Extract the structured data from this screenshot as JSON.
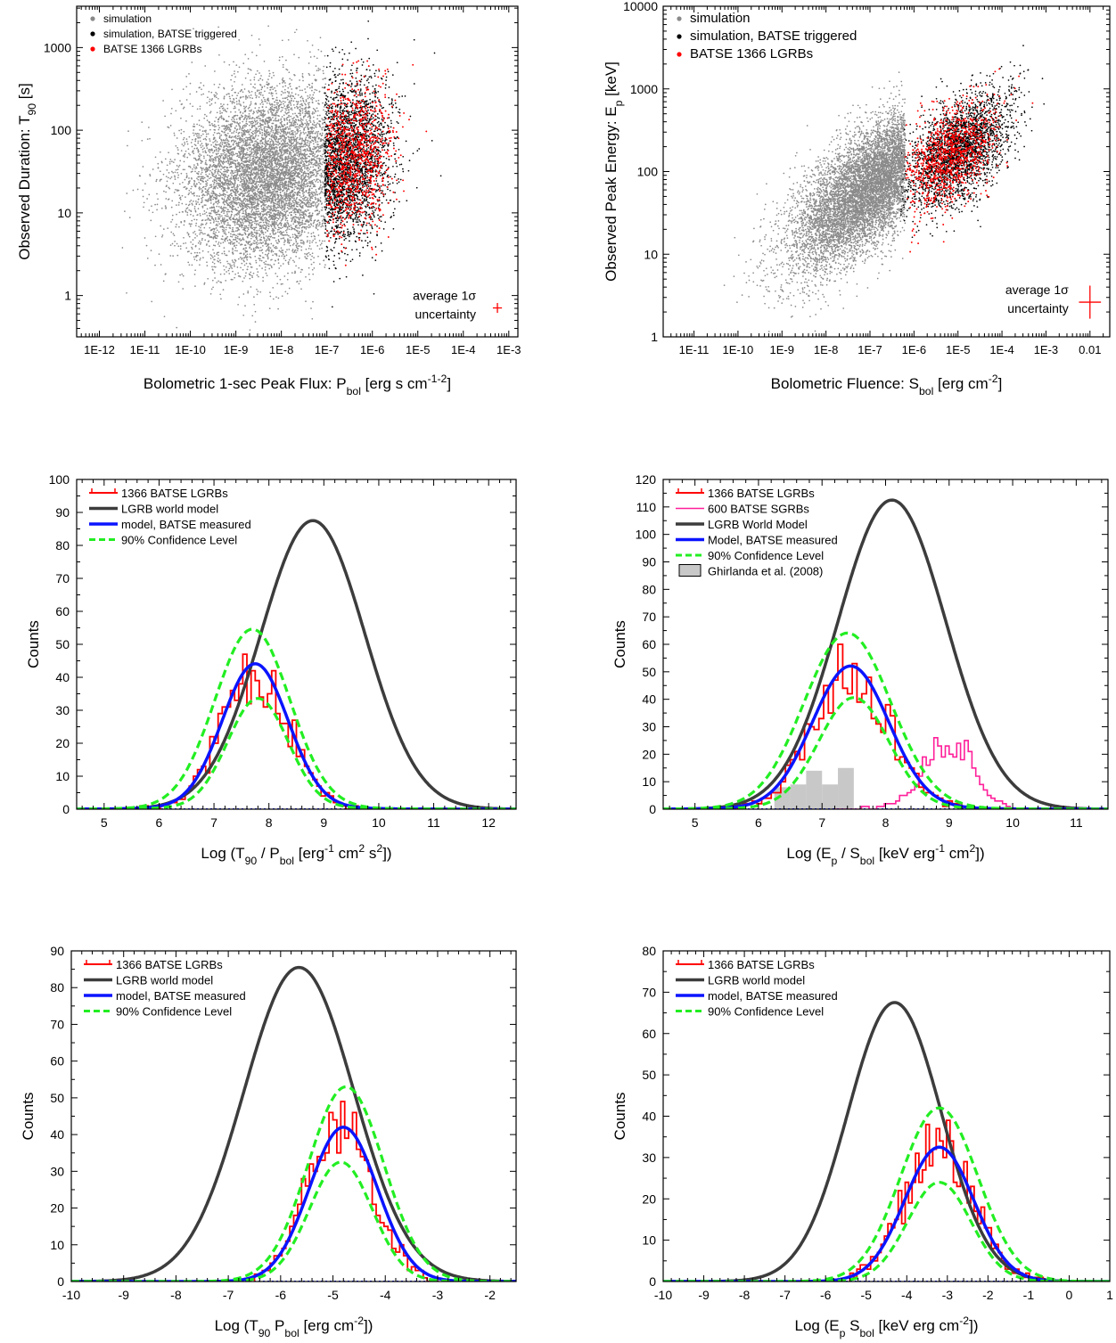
{
  "colors": {
    "simulation": "#8a8a8a",
    "batse_triggered": "#000000",
    "batse_lgrb": "#ff0000",
    "sgrb": "#ff1f9a",
    "world_model": "#3c3c3c",
    "measured_model": "#0b14ff",
    "confidence": "#22ee22",
    "ghirlanda": "#c8c8c8"
  },
  "chart_data": [
    {
      "id": "p1",
      "type": "scatter",
      "log_x": true,
      "log_y": true,
      "xlim_log10": [
        -12.5,
        -2.8
      ],
      "ylim_log10": [
        -0.5,
        3.5
      ],
      "x_ticks": [
        {
          "v": -12,
          "label": "1E-12"
        },
        {
          "v": -11,
          "label": "1E-11"
        },
        {
          "v": -10,
          "label": "1E-10"
        },
        {
          "v": -9,
          "label": "1E-9"
        },
        {
          "v": -8,
          "label": "1E-8"
        },
        {
          "v": -7,
          "label": "1E-7"
        },
        {
          "v": -6,
          "label": "1E-6"
        },
        {
          "v": -5,
          "label": "1E-5"
        },
        {
          "v": -4,
          "label": "1E-4"
        },
        {
          "v": -3,
          "label": "1E-3"
        }
      ],
      "y_ticks": [
        {
          "v": 0,
          "label": "1"
        },
        {
          "v": 1,
          "label": "10"
        },
        {
          "v": 2,
          "label": "100"
        },
        {
          "v": 3,
          "label": "1000"
        }
      ],
      "xlabel": {
        "pre": "Bolometric 1-sec Peak Flux: P",
        "sub": "bol",
        "mid1": " [erg s",
        "sup1": "-1",
        "mid2": " cm",
        "sup2": "-2",
        "post": "]"
      },
      "ylabel": {
        "pre": "Observed Duration: T",
        "sub": "90",
        "post": " [s]"
      },
      "legend": [
        "simulation",
        "simulation, BATSE triggered",
        "BATSE 1366 LGRBs"
      ],
      "annotation": [
        "average 1σ",
        "uncertainty"
      ],
      "clouds": {
        "simulation": {
          "mean_x": -8.3,
          "sd_x": 0.95,
          "mean_y": 1.45,
          "sd_y": 0.55,
          "rho": 0.15,
          "x_max": -7.0
        },
        "triggered": {
          "mean_x": -6.7,
          "sd_x": 0.55,
          "mean_y": 1.6,
          "sd_y": 0.5,
          "rho": 0.2,
          "x_min": -7.05
        },
        "lgrb": {
          "mean_x": -6.45,
          "sd_x": 0.45,
          "mean_y": 1.65,
          "sd_y": 0.45,
          "rho": 0.2,
          "x_min": -7.0
        }
      },
      "error_bar": {
        "x": -3.25,
        "y": -0.15,
        "dx": 0.1,
        "dy": 0.06
      }
    },
    {
      "id": "p2",
      "type": "scatter",
      "log_x": true,
      "log_y": true,
      "xlim_log10": [
        -11.7,
        -1.55
      ],
      "ylim_log10": [
        0,
        4
      ],
      "x_ticks": [
        {
          "v": -11,
          "label": "1E-11"
        },
        {
          "v": -10,
          "label": "1E-10"
        },
        {
          "v": -9,
          "label": "1E-9"
        },
        {
          "v": -8,
          "label": "1E-8"
        },
        {
          "v": -7,
          "label": "1E-7"
        },
        {
          "v": -6,
          "label": "1E-6"
        },
        {
          "v": -5,
          "label": "1E-5"
        },
        {
          "v": -4,
          "label": "1E-4"
        },
        {
          "v": -3,
          "label": "1E-3"
        },
        {
          "v": -2,
          "label": "0.01"
        }
      ],
      "y_ticks": [
        {
          "v": 0,
          "label": "1"
        },
        {
          "v": 1,
          "label": "10"
        },
        {
          "v": 2,
          "label": "100"
        },
        {
          "v": 3,
          "label": "1000"
        },
        {
          "v": 4,
          "label": "10000"
        }
      ],
      "xlabel": {
        "pre": "Bolometric Fluence: S",
        "sub": "bol",
        "mid1": " [erg cm",
        "sup1": "-2",
        "post": "]"
      },
      "ylabel": {
        "pre": "Observed Peak Energy: E",
        "sub": "p",
        "post": " [keV]"
      },
      "legend": [
        "simulation",
        "simulation, BATSE triggered",
        "BATSE 1366 LGRBs"
      ],
      "annotation": [
        "average 1σ",
        "uncertainty"
      ],
      "clouds": {
        "simulation": {
          "mean_x": -6.9,
          "sd_x": 0.95,
          "mean_y": 1.85,
          "sd_y": 0.5,
          "rho": 0.7,
          "x_max": -6.2
        },
        "triggered": {
          "mean_x": -5.0,
          "sd_x": 0.6,
          "mean_y": 2.25,
          "sd_y": 0.35,
          "rho": 0.55,
          "x_min": -6.3
        },
        "lgrb": {
          "mean_x": -5.2,
          "sd_x": 0.55,
          "mean_y": 2.2,
          "sd_y": 0.33,
          "rho": 0.5,
          "x_min": -6.2
        }
      },
      "error_bar": {
        "x": -2.0,
        "y": 0.42,
        "dx": 0.25,
        "dy": 0.2
      }
    },
    {
      "id": "p3",
      "type": "line",
      "xlim": [
        4.5,
        12.5
      ],
      "ylim": [
        0,
        100
      ],
      "x_ticks": [
        5,
        6,
        7,
        8,
        9,
        10,
        11,
        12
      ],
      "y_ticks": [
        0,
        10,
        20,
        30,
        40,
        50,
        60,
        70,
        80,
        90,
        100
      ],
      "xlabel": {
        "pre": "Log (T",
        "sub": "90",
        "mid1": " / P",
        "sub2": "bol",
        "mid2": " [erg",
        "sup1": "-1",
        "mid3": " cm",
        "sup2": "2",
        "mid4": " s",
        "sup3": "2",
        "post": "])"
      },
      "ylabel": "Counts",
      "legend": [
        {
          "label": "1366 BATSE LGRBs",
          "kind": "hist"
        },
        {
          "label": "LGRB world model",
          "kind": "world"
        },
        {
          "label": "model, BATSE measured",
          "kind": "model"
        },
        {
          "label": "90% Confidence Level",
          "kind": "conf"
        }
      ],
      "series": [
        {
          "kind": "world",
          "mu": 8.8,
          "sigma": 0.95,
          "amp": 87.5
        },
        {
          "kind": "model",
          "mu": 7.75,
          "sigma": 0.6,
          "amp": 43.5,
          "base": 0.6,
          "base_sigma": 1.4
        },
        {
          "kind": "conf",
          "mu": 7.7,
          "sigma": 0.68,
          "amp": 54,
          "base": 0.6,
          "base_sigma": 1.4
        },
        {
          "kind": "conf",
          "mu": 7.8,
          "sigma": 0.55,
          "amp": 33,
          "base": 0.6,
          "base_sigma": 1.4
        }
      ],
      "histograms": [
        {
          "kind": "hist",
          "start": 5.5,
          "bin": 0.075,
          "mu": 7.75,
          "sigma": 0.6,
          "amp": 44,
          "noise": 0.28,
          "threshold": 0.4,
          "seed": 11
        }
      ]
    },
    {
      "id": "p4",
      "type": "line",
      "xlim": [
        4.5,
        11.5
      ],
      "ylim": [
        0,
        120
      ],
      "x_ticks": [
        5,
        6,
        7,
        8,
        9,
        10,
        11
      ],
      "y_ticks": [
        0,
        10,
        20,
        30,
        40,
        50,
        60,
        70,
        80,
        90,
        100,
        110,
        120
      ],
      "xlabel": {
        "pre": "Log (E",
        "sub": "p",
        "mid1": " / S",
        "sub2": "bol",
        "mid2": "  [keV erg",
        "sup1": "-1",
        "mid3": " cm",
        "sup2": "2",
        "post": "])"
      },
      "ylabel": "Counts",
      "legend": [
        {
          "label": "1366 BATSE LGRBs",
          "kind": "hist"
        },
        {
          "label": "600 BATSE SGRBs",
          "kind": "sgrb"
        },
        {
          "label": "LGRB World Model",
          "kind": "world"
        },
        {
          "label": "Model, BATSE measured",
          "kind": "model"
        },
        {
          "label": "90% Confidence Level",
          "kind": "conf"
        },
        {
          "label": "Ghirlanda et al. (2008)",
          "kind": "ghirl"
        }
      ],
      "series": [
        {
          "kind": "world",
          "mu": 8.1,
          "sigma": 0.85,
          "amp": 112.5
        },
        {
          "kind": "model",
          "mu": 7.45,
          "sigma": 0.6,
          "amp": 51.5,
          "base": 0.6,
          "base_sigma": 1.4
        },
        {
          "kind": "conf",
          "mu": 7.4,
          "sigma": 0.68,
          "amp": 63.5,
          "base": 0.6,
          "base_sigma": 1.4
        },
        {
          "kind": "conf",
          "mu": 7.5,
          "sigma": 0.55,
          "amp": 40,
          "base": 0.6,
          "base_sigma": 1.4
        }
      ],
      "histograms": [
        {
          "kind": "hist",
          "start": 5.6,
          "bin": 0.075,
          "mu": 7.45,
          "sigma": 0.6,
          "amp": 51,
          "noise": 0.25,
          "threshold": 0.4,
          "seed": 23
        },
        {
          "kind": "sgrb",
          "start": 7.2,
          "bin": 0.06,
          "mu": 9.0,
          "sigma": 0.38,
          "amp": 26,
          "noise": 0.3,
          "threshold": 0.5,
          "seed": 37
        }
      ],
      "ghirlanda": {
        "edges": [
          6.25,
          6.5,
          6.75,
          7.0,
          7.25,
          7.5
        ],
        "values": [
          8,
          9,
          14,
          9,
          15
        ]
      }
    },
    {
      "id": "p5",
      "type": "line",
      "xlim": [
        -10,
        -1.5
      ],
      "ylim": [
        0,
        90
      ],
      "x_ticks": [
        -10,
        -9,
        -8,
        -7,
        -6,
        -5,
        -4,
        -3,
        -2
      ],
      "y_ticks": [
        0,
        10,
        20,
        30,
        40,
        50,
        60,
        70,
        80,
        90
      ],
      "xlabel": {
        "pre": "Log (T",
        "sub": "90",
        "mid1": " P",
        "sub2": "bol",
        "mid2": "  [erg cm",
        "sup1": "-2",
        "post": "])"
      },
      "ylabel": "Counts",
      "legend": [
        {
          "label": "1366 BATSE LGRBs",
          "kind": "hist"
        },
        {
          "label": "LGRB world model",
          "kind": "world"
        },
        {
          "label": "model, BATSE measured",
          "kind": "model"
        },
        {
          "label": "90% Confidence Level",
          "kind": "conf"
        }
      ],
      "series": [
        {
          "kind": "world",
          "mu": -5.65,
          "sigma": 1.05,
          "amp": 85.5
        },
        {
          "kind": "model",
          "mu": -4.8,
          "sigma": 0.65,
          "amp": 42
        },
        {
          "kind": "conf",
          "mu": -4.75,
          "sigma": 0.72,
          "amp": 53
        },
        {
          "kind": "conf",
          "mu": -4.85,
          "sigma": 0.6,
          "amp": 32.5
        }
      ],
      "histograms": [
        {
          "kind": "hist",
          "start": -6.5,
          "bin": 0.075,
          "mu": -4.85,
          "sigma": 0.62,
          "amp": 43,
          "noise": 0.22,
          "threshold": 0.4,
          "seed": 51
        }
      ]
    },
    {
      "id": "p6",
      "type": "line",
      "xlim": [
        -10,
        1
      ],
      "ylim": [
        0,
        80
      ],
      "x_ticks": [
        -10,
        -9,
        -8,
        -7,
        -6,
        -5,
        -4,
        -3,
        -2,
        -1,
        0,
        1
      ],
      "y_ticks": [
        0,
        10,
        20,
        30,
        40,
        50,
        60,
        70,
        80
      ],
      "xlabel": {
        "pre": "Log (E",
        "sub": "p",
        "mid1": " S",
        "sub2": "bol",
        "mid2": "  [keV erg cm",
        "sup1": "-2",
        "post": "])"
      },
      "ylabel": "Counts",
      "legend": [
        {
          "label": "1366 BATSE LGRBs",
          "kind": "hist"
        },
        {
          "label": "LGRB world model",
          "kind": "world"
        },
        {
          "label": "model, BATSE measured",
          "kind": "model"
        },
        {
          "label": "90% Confidence Level",
          "kind": "conf"
        }
      ],
      "series": [
        {
          "kind": "world",
          "mu": -4.3,
          "sigma": 1.15,
          "amp": 67.5
        },
        {
          "kind": "model",
          "mu": -3.2,
          "sigma": 0.85,
          "amp": 32.5
        },
        {
          "kind": "conf",
          "mu": -3.2,
          "sigma": 0.95,
          "amp": 42
        },
        {
          "kind": "conf",
          "mu": -3.2,
          "sigma": 0.78,
          "amp": 24
        }
      ],
      "histograms": [
        {
          "kind": "hist",
          "start": -5.4,
          "bin": 0.085,
          "mu": -3.2,
          "sigma": 0.85,
          "amp": 33,
          "noise": 0.25,
          "threshold": 0.4,
          "seed": 71
        }
      ]
    }
  ]
}
